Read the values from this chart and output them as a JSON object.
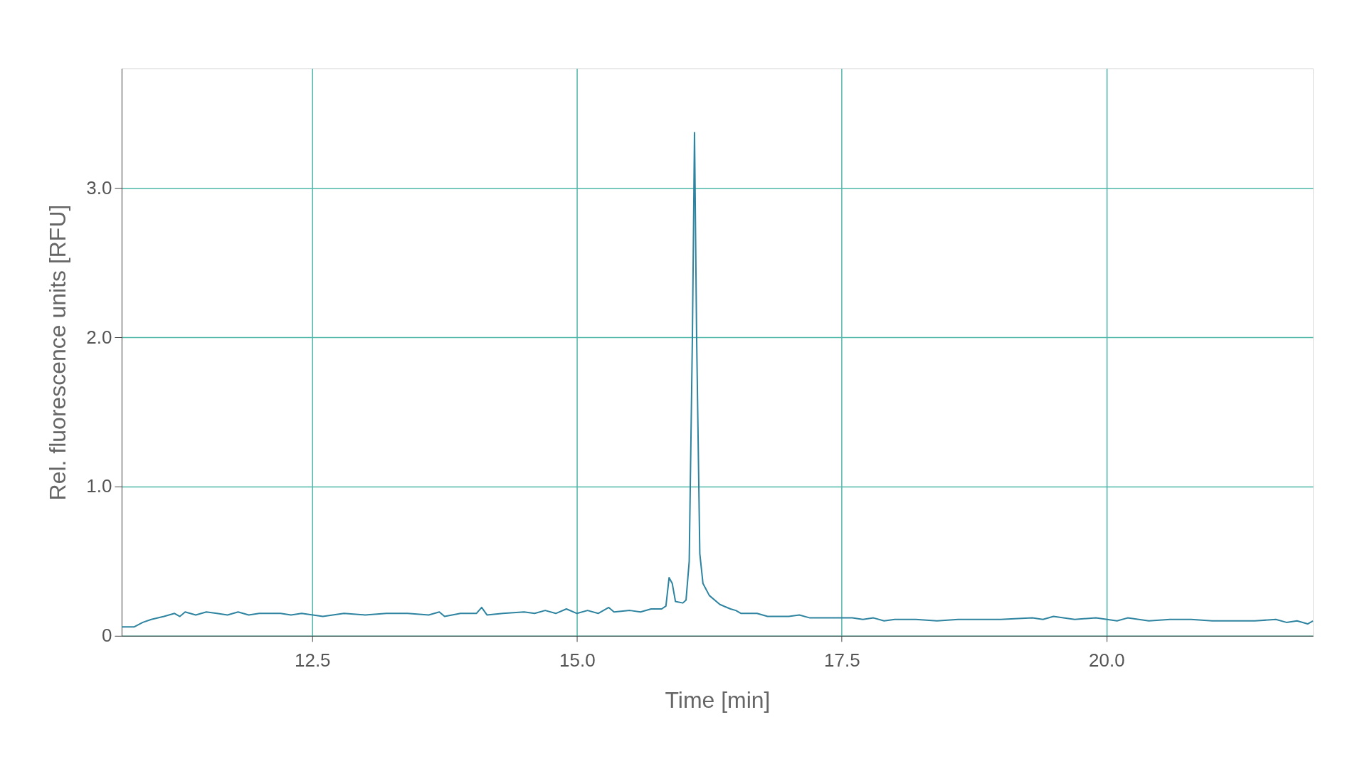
{
  "chart_data": {
    "type": "line",
    "xlabel": "Time [min]",
    "ylabel": "Rel. fluorescence units [RFU]",
    "xlim": [
      10.7,
      21.95
    ],
    "ylim": [
      0,
      3.8
    ],
    "xticks": [
      12.5,
      {
        "value": 15,
        "label": "15.0"
      },
      17.5,
      {
        "value": 20,
        "label": "20.0"
      }
    ],
    "yticks": [
      {
        "value": 0,
        "label": "0"
      },
      {
        "value": 1,
        "label": "1.0"
      },
      {
        "value": 2,
        "label": "2.0"
      },
      {
        "value": 3,
        "label": "3.0"
      }
    ],
    "grid": true,
    "marker": "none",
    "line_style": "solid",
    "series": [
      {
        "color": "#2e84a0",
        "x": [
          10.7,
          10.82,
          10.9,
          10.98,
          11.1,
          11.2,
          11.25,
          11.3,
          11.4,
          11.5,
          11.6,
          11.7,
          11.8,
          11.9,
          12.0,
          12.2,
          12.3,
          12.4,
          12.6,
          12.8,
          13.0,
          13.2,
          13.4,
          13.6,
          13.7,
          13.75,
          13.9,
          14.05,
          14.1,
          14.15,
          14.3,
          14.5,
          14.6,
          14.7,
          14.8,
          14.9,
          15.0,
          15.1,
          15.2,
          15.3,
          15.35,
          15.5,
          15.6,
          15.7,
          15.8,
          15.84,
          15.87,
          15.9,
          15.93,
          16.0,
          16.03,
          16.06,
          16.09,
          16.11,
          16.13,
          16.16,
          16.19,
          16.25,
          16.35,
          16.45,
          16.5,
          16.55,
          16.7,
          16.8,
          17.0,
          17.1,
          17.2,
          17.4,
          17.6,
          17.7,
          17.8,
          17.9,
          18.0,
          18.2,
          18.4,
          18.6,
          18.8,
          19.0,
          19.3,
          19.4,
          19.5,
          19.7,
          19.9,
          20.1,
          20.2,
          20.4,
          20.6,
          20.8,
          21.0,
          21.2,
          21.4,
          21.6,
          21.7,
          21.8,
          21.9,
          21.95
        ],
        "values": [
          0.06,
          0.06,
          0.09,
          0.11,
          0.13,
          0.15,
          0.13,
          0.16,
          0.14,
          0.16,
          0.15,
          0.14,
          0.16,
          0.14,
          0.15,
          0.15,
          0.14,
          0.15,
          0.13,
          0.15,
          0.14,
          0.15,
          0.15,
          0.14,
          0.16,
          0.13,
          0.15,
          0.15,
          0.19,
          0.14,
          0.15,
          0.16,
          0.15,
          0.17,
          0.15,
          0.18,
          0.15,
          0.17,
          0.15,
          0.19,
          0.16,
          0.17,
          0.16,
          0.18,
          0.18,
          0.2,
          0.39,
          0.35,
          0.23,
          0.22,
          0.24,
          0.5,
          2.0,
          3.37,
          2.0,
          0.55,
          0.35,
          0.27,
          0.21,
          0.18,
          0.17,
          0.15,
          0.15,
          0.13,
          0.13,
          0.14,
          0.12,
          0.12,
          0.12,
          0.11,
          0.12,
          0.1,
          0.11,
          0.11,
          0.1,
          0.11,
          0.11,
          0.11,
          0.12,
          0.11,
          0.13,
          0.11,
          0.12,
          0.1,
          0.12,
          0.1,
          0.11,
          0.11,
          0.1,
          0.1,
          0.1,
          0.11,
          0.09,
          0.1,
          0.08,
          0.1
        ]
      }
    ]
  }
}
